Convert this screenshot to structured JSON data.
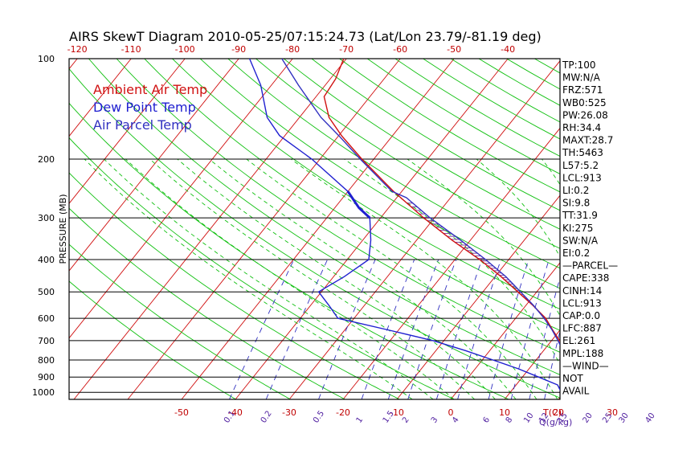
{
  "title": "AIRS SkewT Diagram 2010-05-25/07:15:24.73 (Lat/Lon 23.79/-81.19 deg)",
  "ylabel": "PRESSURE (MB)",
  "legend": [
    {
      "label": "Ambient Air Temp",
      "color": "#d01010"
    },
    {
      "label": "Dew Point Temp",
      "color": "#2020d0"
    },
    {
      "label": "Air Parcel Temp",
      "color": "#3030c0"
    }
  ],
  "colors": {
    "isotherm": "#d01010",
    "dry_adiabat": "#10c010",
    "moist_adiabat": "#10c010",
    "mixing_ratio": "#3030c0",
    "isobar": "#000000",
    "frame": "#000000"
  },
  "top_axis_ticks": [
    "-120",
    "-110",
    "-100",
    "-90",
    "-80",
    "-70",
    "-60",
    "-50",
    "-40"
  ],
  "bottom_axis_ticks": [
    "-50",
    "-40",
    "-30",
    "-20",
    "-10",
    "0",
    "10",
    "20",
    "30"
  ],
  "bottom_axis_unit": "T(C)",
  "mixing_ratio_labels": [
    "0.1",
    "0.2",
    "0.5",
    "1",
    "1.5",
    "2",
    "3",
    "4",
    "6",
    "8",
    "10",
    "12",
    "15",
    "20",
    "25",
    "30",
    "40"
  ],
  "mixing_ratio_unit": "Q(g/kg)",
  "indices": [
    "TP:100",
    "MW:N/A",
    "FRZ:571",
    "WB0:525",
    "PW:26.08",
    "RH:34.4",
    "MAXT:28.7",
    "TH:5463",
    "L57:5.2",
    "LCL:913",
    "LI:0.2",
    "SI:9.8",
    "TT:31.9",
    "KI:275",
    "SW:N/A",
    "EI:0.2",
    "—PARCEL—",
    "CAPE:338",
    "CINH:14",
    "LCL:913",
    "CAP:0.0",
    "LFC:887",
    "EL:261",
    "MPL:188",
    "—WIND—",
    "NOT",
    "AVAIL"
  ],
  "chart_data": {
    "type": "line",
    "title": "AIRS SkewT Diagram 2010-05-25/07:15:24.73 (Lat/Lon 23.79/-81.19 deg)",
    "ylabel": "PRESSURE (MB)",
    "y_scale": "log",
    "ylim": [
      1050,
      100
    ],
    "xlim_bottom": [
      -52,
      37
    ],
    "x_unit": "T(C)",
    "y_ticks": [
      100,
      200,
      300,
      400,
      500,
      600,
      700,
      800,
      900,
      1000
    ],
    "grid": true,
    "legend_position": "top-left",
    "series": [
      {
        "name": "Ambient Air Temp",
        "points": [
          [
            1013,
            27.5
          ],
          [
            1000,
            26.2
          ],
          [
            980,
            24.8
          ],
          [
            955,
            23.4
          ],
          [
            925,
            22.0
          ],
          [
            900,
            21.4
          ],
          [
            870,
            20.4
          ],
          [
            850,
            19.4
          ],
          [
            800,
            17.0
          ],
          [
            750,
            14.5
          ],
          [
            700,
            11.5
          ],
          [
            650,
            8.6
          ],
          [
            600,
            5.6
          ],
          [
            550,
            1.4
          ],
          [
            500,
            -3.5
          ],
          [
            450,
            -8.9
          ],
          [
            400,
            -15.4
          ],
          [
            350,
            -23.4
          ],
          [
            300,
            -32.0
          ],
          [
            250,
            -41.5
          ],
          [
            200,
            -52.2
          ],
          [
            170,
            -59.5
          ],
          [
            150,
            -64.5
          ],
          [
            130,
            -68.5
          ],
          [
            115,
            -69.0
          ],
          [
            100,
            -70.5
          ]
        ]
      },
      {
        "name": "Dew Point Temp",
        "points": [
          [
            1013,
            20.4
          ],
          [
            1000,
            19.5
          ],
          [
            950,
            17.7
          ],
          [
            900,
            13.0
          ],
          [
            850,
            8.0
          ],
          [
            800,
            2.0
          ],
          [
            750,
            -4.5
          ],
          [
            700,
            -12.0
          ],
          [
            650,
            -22.0
          ],
          [
            600,
            -33.0
          ],
          [
            550,
            -36.5
          ],
          [
            500,
            -40.5
          ],
          [
            450,
            -38.0
          ],
          [
            400,
            -36.0
          ],
          [
            350,
            -38.5
          ],
          [
            300,
            -42.0
          ],
          [
            280,
            -45.5
          ],
          [
            250,
            -50.0
          ],
          [
            200,
            -61.5
          ],
          [
            170,
            -71.0
          ],
          [
            150,
            -76.0
          ],
          [
            120,
            -82.0
          ],
          [
            100,
            -88.0
          ]
        ]
      },
      {
        "name": "Air Parcel Temp",
        "points": [
          [
            1013,
            27.5
          ],
          [
            950,
            22.5
          ],
          [
            913,
            19.3
          ],
          [
            887,
            18.5
          ],
          [
            850,
            17.4
          ],
          [
            800,
            15.6
          ],
          [
            750,
            13.6
          ],
          [
            700,
            11.2
          ],
          [
            650,
            8.5
          ],
          [
            600,
            5.3
          ],
          [
            550,
            1.5
          ],
          [
            500,
            -3.0
          ],
          [
            450,
            -8.0
          ],
          [
            400,
            -14.3
          ],
          [
            350,
            -21.8
          ],
          [
            300,
            -30.8
          ],
          [
            261,
            -38.2
          ],
          [
            250,
            -41.8
          ],
          [
            200,
            -52.5
          ],
          [
            170,
            -60.0
          ],
          [
            150,
            -66.0
          ],
          [
            120,
            -75.0
          ],
          [
            100,
            -82.0
          ]
        ]
      }
    ]
  }
}
